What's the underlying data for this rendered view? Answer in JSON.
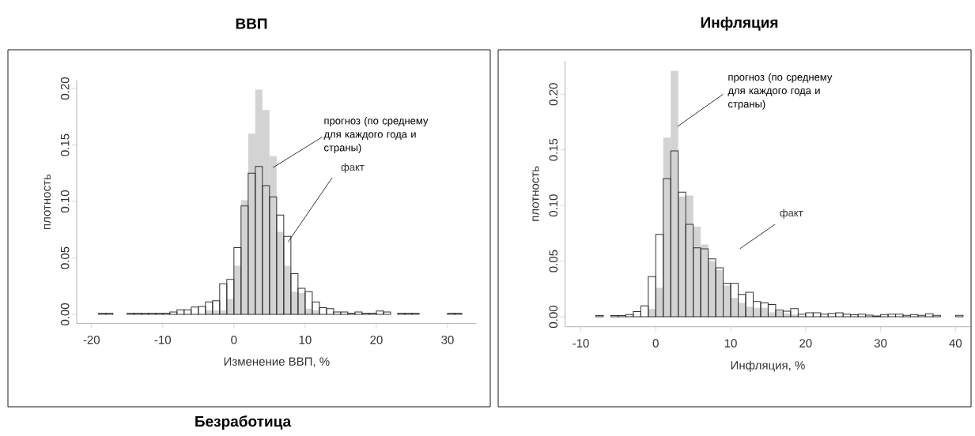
{
  "chart_data": [
    {
      "type": "histogram",
      "title": "ВВП",
      "xlabel": "Изменение ВВП, %",
      "ylabel": "плотность",
      "bins": [
        -20,
        -19,
        -18,
        -17,
        -16,
        -15,
        -14,
        -13,
        -12,
        -11,
        -10,
        -9,
        -8,
        -7,
        -6,
        -5,
        -4,
        -3,
        -2,
        -1,
        0,
        1,
        2,
        3,
        4,
        5,
        6,
        7,
        8,
        9,
        10,
        11,
        12,
        13,
        14,
        15,
        16,
        17,
        18,
        19,
        20,
        21,
        22,
        23,
        24,
        25,
        26,
        27,
        28,
        29,
        30,
        31,
        32
      ],
      "series": [
        {
          "name": "прогноз (по среднему для каждого года и страны)",
          "color": "#d3d3d3",
          "values": [
            null,
            null,
            null,
            null,
            null,
            null,
            null,
            null,
            null,
            null,
            null,
            null,
            null,
            null,
            null,
            null,
            0.0035,
            0.0035,
            0.0035,
            0.0135,
            0.043,
            0.101,
            0.16,
            0.199,
            0.181,
            0.14,
            0.073,
            0.043,
            0.02,
            0.019,
            0.005,
            0.0035,
            null,
            null,
            null,
            null,
            null,
            null,
            null,
            null,
            null,
            null,
            null,
            null,
            null,
            null,
            null,
            null,
            null,
            null,
            null,
            null
          ]
        },
        {
          "name": "факт",
          "color": "#333333",
          "values": [
            null,
            0.001,
            0.001,
            null,
            null,
            0.001,
            0.001,
            0.001,
            0.001,
            0.001,
            0.001,
            0.002,
            0.004,
            0.004,
            0.0065,
            0.007,
            0.011,
            0.012,
            0.027,
            0.031,
            0.059,
            0.096,
            0.125,
            0.131,
            0.114,
            0.104,
            0.088,
            0.069,
            0.036,
            0.023,
            0.02,
            0.011,
            0.006,
            0.005,
            0.002,
            0.002,
            0.001,
            0.002,
            0.001,
            0.001,
            0.003,
            0.002,
            null,
            0.001,
            0.001,
            0.001,
            null,
            null,
            null,
            null,
            0.001,
            0.001
          ]
        }
      ],
      "xlim": [
        -22.08,
        34.08
      ],
      "ylim": [
        -0.008,
        0.207
      ],
      "xticks": [
        -20,
        -10,
        0,
        10,
        20,
        30
      ],
      "yticks": [
        {
          "value": 0,
          "label": "0.00"
        },
        {
          "value": 0.05,
          "label": "0.05"
        },
        {
          "value": 0.1,
          "label": "0.10"
        },
        {
          "value": 0.15,
          "label": "0.15"
        },
        {
          "value": 0.2,
          "label": "0.20"
        }
      ]
    },
    {
      "type": "histogram",
      "title": "Инфляция",
      "xlabel": "Инфляция, %",
      "ylabel": "плотность",
      "bins": [
        -10,
        -9,
        -8,
        -7,
        -6,
        -5,
        -4,
        -3,
        -2,
        -1,
        0,
        1,
        2,
        3,
        4,
        5,
        6,
        7,
        8,
        9,
        10,
        11,
        12,
        13,
        14,
        15,
        16,
        17,
        18,
        19,
        20,
        21,
        22,
        23,
        24,
        25,
        26,
        27,
        28,
        29,
        30,
        31,
        32,
        33,
        34,
        35,
        36,
        37,
        38,
        39,
        40,
        41,
        42
      ],
      "series": [
        {
          "name": "прогноз (по среднему для каждого года и страны)",
          "color": "#d3d3d3",
          "values": [
            null,
            null,
            null,
            null,
            null,
            null,
            null,
            null,
            null,
            0.007,
            0.026,
            0.161,
            0.221,
            0.108,
            0.109,
            0.081,
            0.065,
            0.05,
            0.042,
            0.028,
            0.017,
            0.0125,
            0.009,
            0.008,
            0.008,
            0.004,
            0.005,
            0.003,
            0.002,
            null,
            null,
            null,
            null,
            null,
            null,
            null,
            null,
            null,
            null,
            null,
            null,
            null,
            null,
            null,
            null,
            null,
            null,
            null,
            null,
            null,
            null,
            null
          ]
        },
        {
          "name": "факт",
          "color": "#333333",
          "values": [
            null,
            null,
            0.001,
            null,
            0.001,
            0.001,
            0.002,
            0.0047,
            0.0097,
            0.036,
            0.074,
            0.124,
            0.149,
            0.112,
            0.083,
            0.062,
            0.061,
            0.052,
            0.044,
            0.03,
            0.03,
            0.02,
            0.022,
            0.0137,
            0.0125,
            0.011,
            0.006,
            0.005,
            0.0073,
            0.0024,
            0.0036,
            0.0036,
            0.0024,
            0.003,
            0.0036,
            0.0024,
            0.0017,
            0.0024,
            0.0014,
            0.0007,
            0.002,
            0.0024,
            0.0024,
            0.0012,
            0.002,
            0.0012,
            0.0026,
            0.0012,
            null,
            null,
            0.0012,
            null
          ]
        }
      ],
      "xlim": [
        -12.1,
        42
      ],
      "ylim": [
        -0.009,
        0.23
      ],
      "xticks": [
        -10,
        0,
        10,
        20,
        30,
        40
      ],
      "yticks": [
        {
          "value": 0,
          "label": "0.00"
        },
        {
          "value": 0.05,
          "label": "0.05"
        },
        {
          "value": 0.1,
          "label": "0.10"
        },
        {
          "value": 0.15,
          "label": "0.15"
        },
        {
          "value": 0.2,
          "label": "0.20"
        }
      ]
    },
    {
      "type": "other",
      "title": "Безработица"
    }
  ]
}
